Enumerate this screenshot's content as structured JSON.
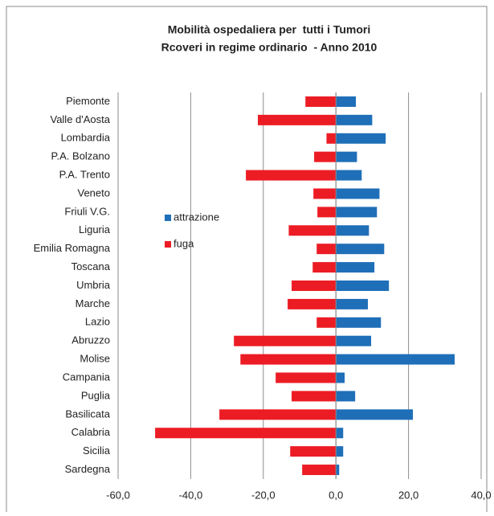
{
  "chart_data": {
    "type": "bar",
    "orientation": "horizontal",
    "title": "Mobilità ospedaliera per  tutti i Tumori",
    "subtitle": "Rcoveri in regime ordinario  - Anno 2010",
    "categories": [
      "Piemonte",
      "Valle d'Aosta",
      "Lombardia",
      "P.A. Bolzano",
      "P.A. Trento",
      "Veneto",
      "Friuli V.G.",
      "Liguria",
      "Emilia Romagna",
      "Toscana",
      "Umbria",
      "Marche",
      "Lazio",
      "Abruzzo",
      "Molise",
      "Campania",
      "Puglia",
      "Basilicata",
      "Calabria",
      "Sicilia",
      "Sardegna"
    ],
    "series": [
      {
        "name": "attrazione",
        "color": "#1f6fb8",
        "values": [
          5.5,
          10.0,
          13.7,
          5.8,
          7.1,
          12.0,
          11.3,
          9.1,
          13.3,
          10.6,
          14.6,
          8.8,
          12.4,
          9.7,
          32.7,
          2.4,
          5.3,
          21.2,
          2.0,
          2.0,
          0.9
        ]
      },
      {
        "name": "fuga",
        "color": "#ec1c24",
        "values": [
          -8.4,
          -21.5,
          -2.6,
          -6.0,
          -24.8,
          -6.2,
          -5.1,
          -13.0,
          -5.3,
          -6.4,
          -12.2,
          -13.3,
          -5.3,
          -28.1,
          -26.3,
          -16.6,
          -12.2,
          -32.1,
          -49.8,
          -12.6,
          -9.3
        ]
      }
    ],
    "xlim": [
      -60,
      40
    ],
    "xticks": [
      {
        "value": -60,
        "label": "-60,0"
      },
      {
        "value": -40,
        "label": "-40,0"
      },
      {
        "value": -20,
        "label": "-20,0"
      },
      {
        "value": 0,
        "label": "0,0"
      },
      {
        "value": 20,
        "label": "20,0"
      },
      {
        "value": 40,
        "label": "40,0"
      }
    ],
    "grid": true,
    "legend": "left"
  }
}
